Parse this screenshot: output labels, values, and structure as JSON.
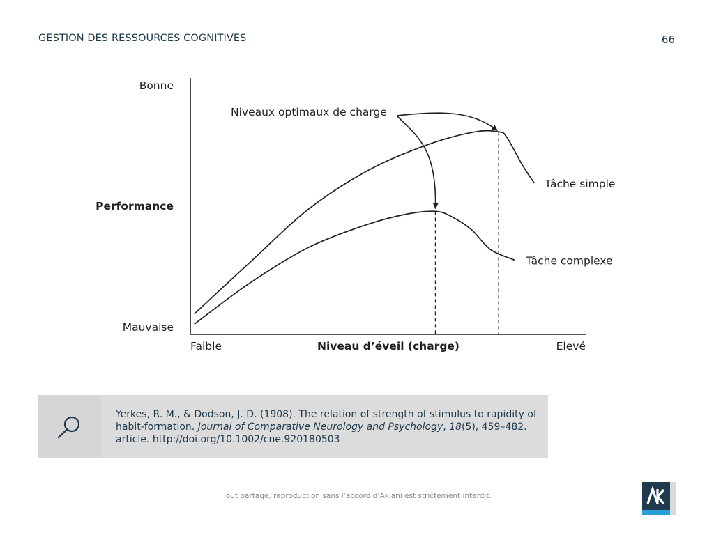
{
  "header": {
    "title": "GESTION DES RESSOURCES COGNITIVES",
    "page_number": "66"
  },
  "chart_data": {
    "type": "line",
    "ylabel": "Performance",
    "xlabel": "Niveau d’éveil (charge)",
    "y_scale_labels": {
      "top": "Bonne",
      "bottom": "Mauvaise"
    },
    "x_scale_labels": {
      "left": "Faible",
      "right": "Elevé"
    },
    "xlim": [
      0,
      100
    ],
    "ylim": [
      0,
      100
    ],
    "series": [
      {
        "name": "Tâche simple",
        "x": [
          1,
          15,
          30,
          45,
          60,
          72,
          78,
          80,
          84,
          87
        ],
        "y": [
          8,
          28,
          49,
          64,
          74,
          79,
          79,
          77,
          66,
          59
        ],
        "optimum": {
          "x": 78,
          "y": 79
        }
      },
      {
        "name": "Tâche complexe",
        "x": [
          1,
          15,
          30,
          45,
          55,
          62,
          66,
          71,
          76,
          82
        ],
        "y": [
          4,
          20,
          34,
          43,
          47,
          48,
          46,
          41,
          33,
          29
        ],
        "optimum": {
          "x": 62,
          "y": 48
        }
      }
    ],
    "annotation": "Niveaux optimaux de charge",
    "grid": false,
    "colors": {
      "line": "#231f20"
    }
  },
  "reference": {
    "authors": "Yerkes, R. M., & Dodson, J. D. (1908). The relation of strength of stimulus to rapidity of habit-formation.",
    "journal": "Journal of Comparative Neurology and Psychology",
    "volume": "18",
    "rest": "(5), 459–482. article. http://doi.org/10.1002/cne.920180503",
    "icon": "search-icon"
  },
  "footer": {
    "note": "Tout partage, reproduction sans l’accord d’Akiani est strictement interdit."
  },
  "brand": {
    "logo_text": "AK",
    "colors": {
      "dark": "#1e3a4c",
      "accent": "#2a9fd6",
      "gray": "#d9d9d9",
      "text": "#1e3a4c"
    }
  }
}
